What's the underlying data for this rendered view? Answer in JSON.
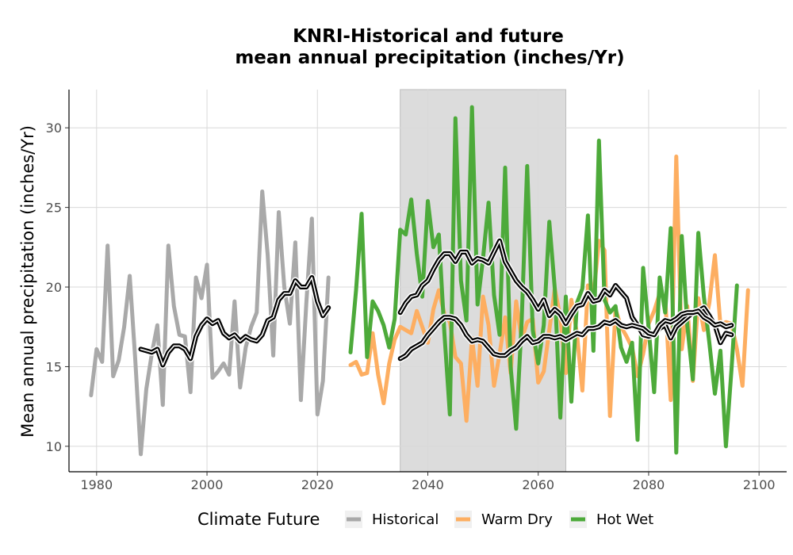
{
  "chart_data": {
    "type": "line",
    "title": [
      "KNRI-Historical and future",
      "mean annual precipitation (inches/Yr)"
    ],
    "xlabel": "",
    "ylabel": "Mean annual precipitation (inches/Yr)",
    "xlim": [
      1975,
      2105
    ],
    "ylim": [
      8.4,
      32.4
    ],
    "xticks": [
      1980,
      2000,
      2020,
      2040,
      2060,
      2080,
      2100
    ],
    "yticks": [
      10,
      15,
      20,
      25,
      30
    ],
    "grid": true,
    "shaded_period": [
      2035,
      2065
    ],
    "shade_color": "#dcdcdc",
    "legend": {
      "title": "Climate Future",
      "placement": "bottom",
      "entries": [
        {
          "label": "Historical",
          "color": "#a9a9a9"
        },
        {
          "label": "Warm Dry",
          "color": "#fdae61"
        },
        {
          "label": "Hot Wet",
          "color": "#4daa3a"
        }
      ]
    },
    "series": [
      {
        "name": "Historical",
        "color": "#a9a9a9",
        "x_start": 1979,
        "values": [
          13.2,
          16.1,
          15.3,
          22.6,
          14.4,
          15.4,
          17.5,
          20.7,
          15.5,
          9.5,
          13.6,
          15.8,
          17.6,
          12.6,
          22.6,
          18.8,
          17.0,
          16.9,
          13.4,
          20.6,
          19.3,
          21.4,
          14.3,
          14.7,
          15.2,
          14.5,
          19.1,
          13.7,
          16.2,
          17.5,
          18.4,
          26.0,
          22.0,
          15.7,
          24.7,
          20.0,
          17.7,
          22.8,
          12.9,
          19.0,
          24.3,
          12.0,
          14.1,
          20.6
        ]
      },
      {
        "name": "Warm Dry",
        "color": "#fdae61",
        "x_start": 2026,
        "values": [
          15.1,
          15.3,
          14.5,
          14.6,
          17.1,
          14.5,
          12.7,
          15.2,
          16.7,
          17.5,
          17.3,
          17.1,
          18.5,
          17.5,
          16.5,
          18.6,
          19.8,
          18.3,
          17.8,
          15.6,
          15.2,
          11.6,
          16.8,
          13.8,
          19.4,
          17.6,
          13.8,
          15.8,
          18.1,
          14.6,
          19.1,
          16.7,
          17.8,
          18.0,
          14.0,
          14.7,
          17.3,
          19.9,
          18.1,
          14.6,
          19.2,
          17.1,
          13.5,
          20.1,
          19.4,
          22.9,
          22.3,
          11.9,
          18.6,
          17.5,
          16.9,
          16.2,
          14.4,
          15.8,
          17.7,
          18.5,
          19.6,
          19.4,
          12.9,
          28.2,
          16.1,
          18.8,
          14.1,
          19.3,
          17.3,
          19.0,
          22.0,
          17.6,
          17.8,
          17.7,
          16.1,
          13.8,
          19.8
        ]
      },
      {
        "name": "Hot Wet",
        "color": "#4daa3a",
        "x_start": 2026,
        "values": [
          15.9,
          19.8,
          24.6,
          15.6,
          19.1,
          18.5,
          17.6,
          16.2,
          18.0,
          23.6,
          23.3,
          25.5,
          22.1,
          19.4,
          25.4,
          22.5,
          23.3,
          17.1,
          12.0,
          30.6,
          20.4,
          17.9,
          31.3,
          18.9,
          21.8,
          25.3,
          19.5,
          17.0,
          27.5,
          15.0,
          11.1,
          17.8,
          27.6,
          17.3,
          15.2,
          17.6,
          24.1,
          19.9,
          11.8,
          19.4,
          12.8,
          19.0,
          19.9,
          24.5,
          16.0,
          29.2,
          19.2,
          18.4,
          18.8,
          16.2,
          15.3,
          16.5,
          10.4,
          21.2,
          17.4,
          13.4,
          20.6,
          18.4,
          23.7,
          9.6,
          23.2,
          17.6,
          14.2,
          23.4,
          19.4,
          16.5,
          13.3,
          16.0,
          10.0,
          14.8,
          20.1
        ]
      },
      {
        "name": "",
        "color": "#000000",
        "smoothed": true,
        "x_start": 1988,
        "values": [
          16.1,
          16.0,
          15.9,
          16.1,
          15.1,
          15.9,
          16.3,
          16.3,
          16.1,
          15.5,
          16.9,
          17.6,
          18.0,
          17.7,
          17.9,
          17.1,
          16.8,
          17.0,
          16.6,
          16.9,
          16.7,
          16.6,
          17.0,
          17.9,
          18.1,
          19.2,
          19.6,
          19.6,
          20.4,
          20.0,
          20.0,
          20.6,
          19.1,
          18.2,
          18.7
        ]
      },
      {
        "name": "",
        "color": "#000000",
        "smoothed": true,
        "x_start": 2035,
        "values": [
          18.4,
          19.0,
          19.4,
          19.5,
          20.1,
          20.4,
          21.1,
          21.7,
          22.1,
          22.1,
          21.6,
          22.2,
          22.2,
          21.5,
          21.8,
          21.7,
          21.5,
          22.2,
          22.9,
          21.6,
          21.0,
          20.4,
          20.0,
          19.7,
          19.2,
          18.6,
          19.2,
          18.2,
          18.6,
          18.3,
          17.7,
          18.3,
          18.8,
          18.9,
          19.6,
          19.1,
          19.2,
          19.8,
          19.5,
          20.1,
          19.7,
          19.3,
          18.1,
          17.6,
          17.0,
          16.9,
          17.0,
          17.4,
          17.6,
          16.8,
          17.5,
          17.8,
          18.1,
          18.4,
          18.5,
          18.7,
          18.2,
          17.6,
          16.5,
          17.1,
          17.0
        ]
      },
      {
        "name": "",
        "color": "#000000",
        "smoothed": true,
        "x_start": 2035,
        "values": [
          15.5,
          15.7,
          16.1,
          16.3,
          16.5,
          17.0,
          17.4,
          17.8,
          18.1,
          18.1,
          18.0,
          17.6,
          17.0,
          16.6,
          16.7,
          16.6,
          16.2,
          15.8,
          15.7,
          15.7,
          16.0,
          16.2,
          16.6,
          16.9,
          16.5,
          16.6,
          16.9,
          16.9,
          16.8,
          16.9,
          16.7,
          16.9,
          17.1,
          17.0,
          17.4,
          17.4,
          17.5,
          17.8,
          17.7,
          17.9,
          17.6,
          17.5,
          17.6,
          17.5,
          17.4,
          17.1,
          17.0,
          17.6,
          17.9,
          17.8,
          18.0,
          18.3,
          18.4,
          18.4,
          18.5,
          18.1,
          17.9,
          17.6,
          17.7,
          17.5,
          17.6
        ]
      }
    ]
  }
}
